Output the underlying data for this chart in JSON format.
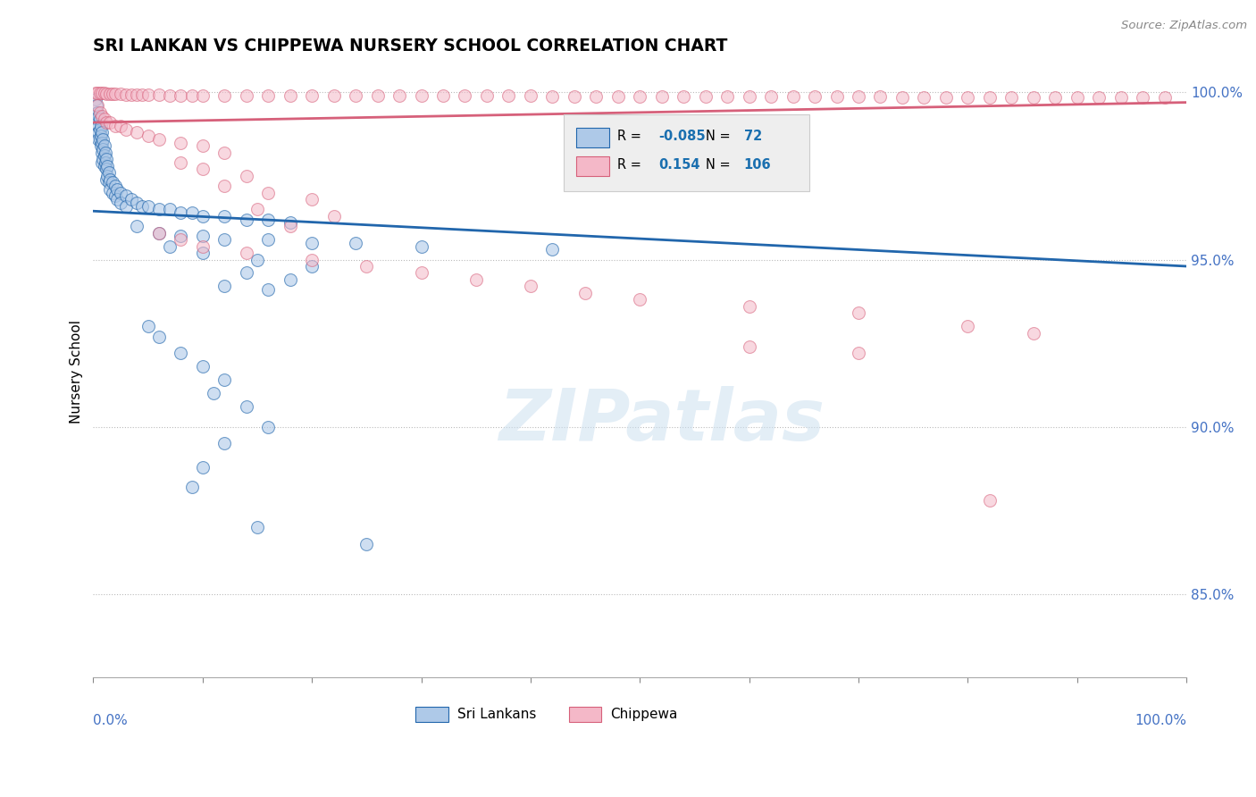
{
  "title": "SRI LANKAN VS CHIPPEWA NURSERY SCHOOL CORRELATION CHART",
  "source_text": "Source: ZipAtlas.com",
  "ylabel": "Nursery School",
  "xlim": [
    0.0,
    1.0
  ],
  "ylim": [
    0.825,
    1.008
  ],
  "ytick_values": [
    0.85,
    0.9,
    0.95,
    1.0
  ],
  "legend_blue_label": "Sri Lankans",
  "legend_pink_label": "Chippewa",
  "R_blue": -0.085,
  "N_blue": 72,
  "R_pink": 0.154,
  "N_pink": 106,
  "blue_color": "#aec9e8",
  "pink_color": "#f4b8c8",
  "line_blue": "#2166ac",
  "line_pink": "#d6607a",
  "watermark": "ZIPatlas",
  "blue_line_start_y": 0.9645,
  "blue_line_end_y": 0.948,
  "pink_line_start_y": 0.991,
  "pink_line_end_y": 0.997,
  "blue_points": [
    [
      0.002,
      0.998
    ],
    [
      0.003,
      0.996
    ],
    [
      0.004,
      0.994
    ],
    [
      0.004,
      0.992
    ],
    [
      0.005,
      0.993
    ],
    [
      0.005,
      0.99
    ],
    [
      0.005,
      0.988
    ],
    [
      0.005,
      0.986
    ],
    [
      0.006,
      0.992
    ],
    [
      0.006,
      0.989
    ],
    [
      0.006,
      0.986
    ],
    [
      0.007,
      0.99
    ],
    [
      0.007,
      0.987
    ],
    [
      0.007,
      0.984
    ],
    [
      0.008,
      0.988
    ],
    [
      0.008,
      0.985
    ],
    [
      0.008,
      0.982
    ],
    [
      0.008,
      0.979
    ],
    [
      0.009,
      0.986
    ],
    [
      0.009,
      0.983
    ],
    [
      0.009,
      0.98
    ],
    [
      0.01,
      0.984
    ],
    [
      0.01,
      0.981
    ],
    [
      0.01,
      0.978
    ],
    [
      0.011,
      0.982
    ],
    [
      0.011,
      0.979
    ],
    [
      0.012,
      0.98
    ],
    [
      0.012,
      0.977
    ],
    [
      0.012,
      0.974
    ],
    [
      0.013,
      0.978
    ],
    [
      0.013,
      0.975
    ],
    [
      0.014,
      0.976
    ],
    [
      0.014,
      0.973
    ],
    [
      0.015,
      0.974
    ],
    [
      0.015,
      0.971
    ],
    [
      0.018,
      0.973
    ],
    [
      0.018,
      0.97
    ],
    [
      0.02,
      0.972
    ],
    [
      0.02,
      0.969
    ],
    [
      0.022,
      0.971
    ],
    [
      0.022,
      0.968
    ],
    [
      0.025,
      0.97
    ],
    [
      0.025,
      0.967
    ],
    [
      0.03,
      0.969
    ],
    [
      0.03,
      0.966
    ],
    [
      0.035,
      0.968
    ],
    [
      0.04,
      0.967
    ],
    [
      0.045,
      0.966
    ],
    [
      0.05,
      0.966
    ],
    [
      0.06,
      0.965
    ],
    [
      0.07,
      0.965
    ],
    [
      0.08,
      0.964
    ],
    [
      0.09,
      0.964
    ],
    [
      0.1,
      0.963
    ],
    [
      0.12,
      0.963
    ],
    [
      0.14,
      0.962
    ],
    [
      0.16,
      0.962
    ],
    [
      0.18,
      0.961
    ],
    [
      0.04,
      0.96
    ],
    [
      0.06,
      0.958
    ],
    [
      0.08,
      0.957
    ],
    [
      0.1,
      0.957
    ],
    [
      0.12,
      0.956
    ],
    [
      0.16,
      0.956
    ],
    [
      0.2,
      0.955
    ],
    [
      0.24,
      0.955
    ],
    [
      0.07,
      0.954
    ],
    [
      0.1,
      0.952
    ],
    [
      0.3,
      0.954
    ],
    [
      0.42,
      0.953
    ],
    [
      0.15,
      0.95
    ],
    [
      0.2,
      0.948
    ],
    [
      0.14,
      0.946
    ],
    [
      0.18,
      0.944
    ],
    [
      0.12,
      0.942
    ],
    [
      0.16,
      0.941
    ]
  ],
  "blue_outliers": [
    [
      0.05,
      0.93
    ],
    [
      0.06,
      0.927
    ],
    [
      0.08,
      0.922
    ],
    [
      0.1,
      0.918
    ],
    [
      0.12,
      0.914
    ],
    [
      0.11,
      0.91
    ],
    [
      0.14,
      0.906
    ],
    [
      0.16,
      0.9
    ],
    [
      0.12,
      0.895
    ],
    [
      0.1,
      0.888
    ],
    [
      0.09,
      0.882
    ],
    [
      0.15,
      0.87
    ],
    [
      0.25,
      0.865
    ]
  ],
  "pink_points_top": [
    [
      0.002,
      0.9998
    ],
    [
      0.004,
      0.9998
    ],
    [
      0.006,
      0.9998
    ],
    [
      0.008,
      0.9997
    ],
    [
      0.01,
      0.9997
    ],
    [
      0.012,
      0.9996
    ],
    [
      0.015,
      0.9996
    ],
    [
      0.018,
      0.9995
    ],
    [
      0.02,
      0.9995
    ],
    [
      0.025,
      0.9995
    ],
    [
      0.03,
      0.9994
    ],
    [
      0.035,
      0.9993
    ],
    [
      0.04,
      0.9993
    ],
    [
      0.045,
      0.9992
    ],
    [
      0.05,
      0.9992
    ],
    [
      0.06,
      0.9992
    ],
    [
      0.07,
      0.9991
    ],
    [
      0.08,
      0.9991
    ],
    [
      0.09,
      0.999
    ],
    [
      0.1,
      0.999
    ],
    [
      0.12,
      0.999
    ],
    [
      0.14,
      0.999
    ],
    [
      0.16,
      0.999
    ],
    [
      0.18,
      0.999
    ],
    [
      0.2,
      0.999
    ],
    [
      0.22,
      0.999
    ],
    [
      0.24,
      0.999
    ],
    [
      0.26,
      0.9989
    ],
    [
      0.28,
      0.9989
    ],
    [
      0.3,
      0.9989
    ],
    [
      0.32,
      0.9989
    ],
    [
      0.34,
      0.9989
    ],
    [
      0.36,
      0.9989
    ],
    [
      0.38,
      0.9989
    ],
    [
      0.4,
      0.9989
    ],
    [
      0.42,
      0.9988
    ],
    [
      0.44,
      0.9988
    ],
    [
      0.46,
      0.9988
    ],
    [
      0.48,
      0.9988
    ],
    [
      0.5,
      0.9988
    ],
    [
      0.52,
      0.9988
    ],
    [
      0.54,
      0.9988
    ],
    [
      0.56,
      0.9988
    ],
    [
      0.58,
      0.9987
    ],
    [
      0.6,
      0.9987
    ],
    [
      0.62,
      0.9987
    ],
    [
      0.64,
      0.9987
    ],
    [
      0.66,
      0.9987
    ],
    [
      0.68,
      0.9987
    ],
    [
      0.7,
      0.9987
    ],
    [
      0.72,
      0.9987
    ],
    [
      0.74,
      0.9986
    ],
    [
      0.76,
      0.9986
    ],
    [
      0.78,
      0.9986
    ],
    [
      0.8,
      0.9986
    ],
    [
      0.82,
      0.9986
    ],
    [
      0.84,
      0.9986
    ],
    [
      0.86,
      0.9985
    ],
    [
      0.88,
      0.9985
    ],
    [
      0.9,
      0.9985
    ],
    [
      0.92,
      0.9985
    ],
    [
      0.94,
      0.9985
    ],
    [
      0.96,
      0.9985
    ],
    [
      0.98,
      0.9984
    ]
  ],
  "pink_scatter": [
    [
      0.004,
      0.996
    ],
    [
      0.006,
      0.994
    ],
    [
      0.008,
      0.993
    ],
    [
      0.01,
      0.992
    ],
    [
      0.012,
      0.991
    ],
    [
      0.015,
      0.991
    ],
    [
      0.02,
      0.99
    ],
    [
      0.025,
      0.99
    ],
    [
      0.03,
      0.989
    ],
    [
      0.04,
      0.988
    ],
    [
      0.05,
      0.987
    ],
    [
      0.06,
      0.986
    ],
    [
      0.08,
      0.985
    ],
    [
      0.1,
      0.984
    ],
    [
      0.12,
      0.982
    ],
    [
      0.08,
      0.979
    ],
    [
      0.1,
      0.977
    ],
    [
      0.14,
      0.975
    ],
    [
      0.12,
      0.972
    ],
    [
      0.16,
      0.97
    ],
    [
      0.2,
      0.968
    ],
    [
      0.15,
      0.965
    ],
    [
      0.22,
      0.963
    ],
    [
      0.18,
      0.96
    ],
    [
      0.06,
      0.958
    ],
    [
      0.08,
      0.956
    ],
    [
      0.1,
      0.954
    ],
    [
      0.14,
      0.952
    ],
    [
      0.2,
      0.95
    ],
    [
      0.25,
      0.948
    ],
    [
      0.3,
      0.946
    ],
    [
      0.35,
      0.944
    ],
    [
      0.4,
      0.942
    ],
    [
      0.45,
      0.94
    ],
    [
      0.5,
      0.938
    ],
    [
      0.6,
      0.936
    ],
    [
      0.7,
      0.934
    ],
    [
      0.8,
      0.93
    ],
    [
      0.86,
      0.928
    ],
    [
      0.6,
      0.924
    ],
    [
      0.7,
      0.922
    ],
    [
      0.82,
      0.878
    ]
  ]
}
